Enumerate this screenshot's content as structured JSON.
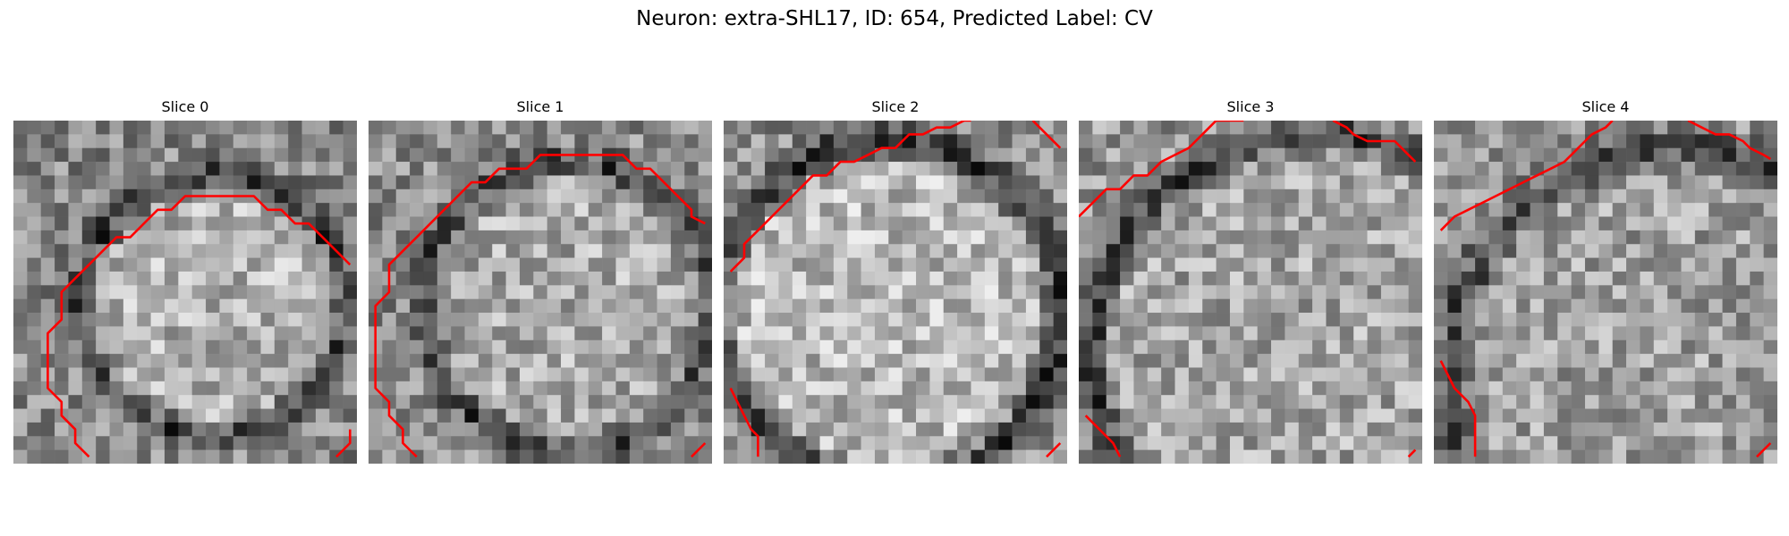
{
  "figure": {
    "suptitle": "Neuron: extra-SHL17, ID: 654, Predicted Label: CV",
    "colormap": "gray",
    "contour_color": "#ff0000"
  },
  "panels": [
    {
      "title": "Slice 0"
    },
    {
      "title": "Slice 1"
    },
    {
      "title": "Slice 2"
    },
    {
      "title": "Slice 3"
    },
    {
      "title": "Slice 4"
    }
  ]
}
